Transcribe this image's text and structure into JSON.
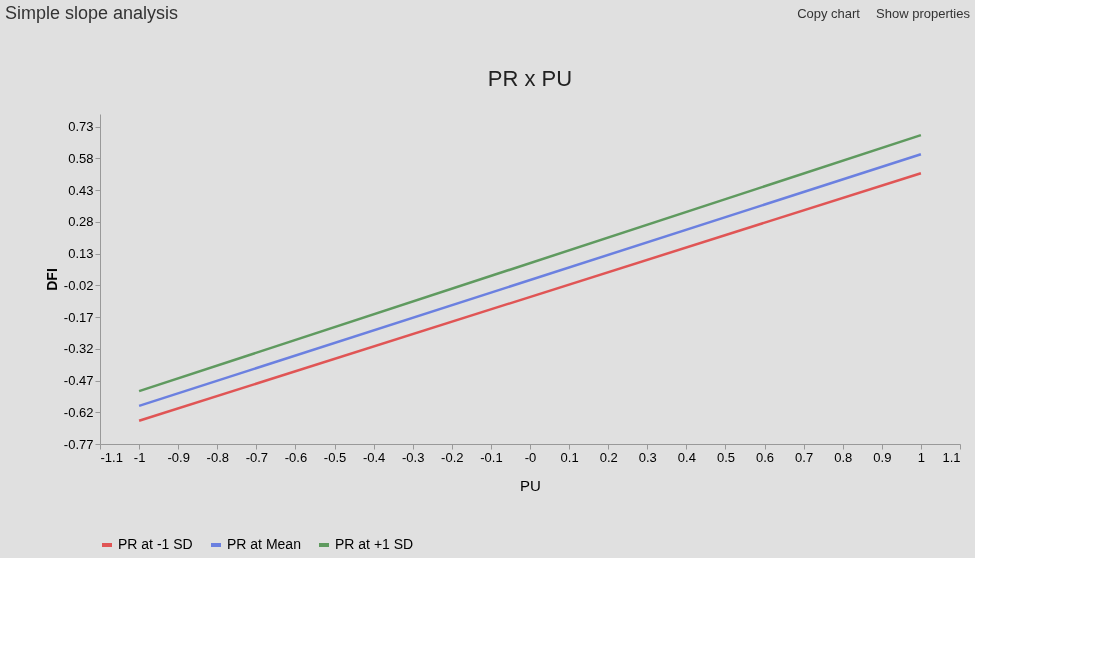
{
  "chart_data": {
    "type": "line",
    "title": "PR x PU",
    "xlabel": "PU",
    "ylabel": "DFI",
    "annotations": [
      "Simple slope analysis",
      "Copy chart",
      "Show properties"
    ],
    "x": [
      -1,
      1
    ],
    "series": [
      {
        "name": "PR at -1 SD",
        "color": "#e05555",
        "values": [
          -0.66,
          0.51
        ]
      },
      {
        "name": "PR at Mean",
        "color": "#6b80e0",
        "values": [
          -0.59,
          0.6
        ]
      },
      {
        "name": "PR at +1 SD",
        "color": "#5f9a5f",
        "values": [
          -0.52,
          0.69
        ]
      }
    ],
    "xlim": [
      -1.1,
      1.1
    ],
    "xticks": [
      -1.1,
      -1,
      -0.9,
      -0.8,
      -0.7,
      -0.6,
      -0.5,
      -0.4,
      -0.3,
      -0.2,
      -0.1,
      {
        "value": 0,
        "label": "-0"
      },
      0.1,
      0.2,
      0.3,
      0.4,
      0.5,
      0.6,
      0.7,
      0.8,
      0.9,
      1,
      1.1
    ],
    "ylim": [
      -0.77,
      0.79
    ],
    "yticks": [
      -0.77,
      -0.62,
      -0.47,
      -0.32,
      -0.17,
      -0.02,
      0.13,
      0.28,
      0.43,
      0.58,
      0.73
    ],
    "legend": "bottom",
    "marker": "none",
    "line_style": "solid"
  }
}
